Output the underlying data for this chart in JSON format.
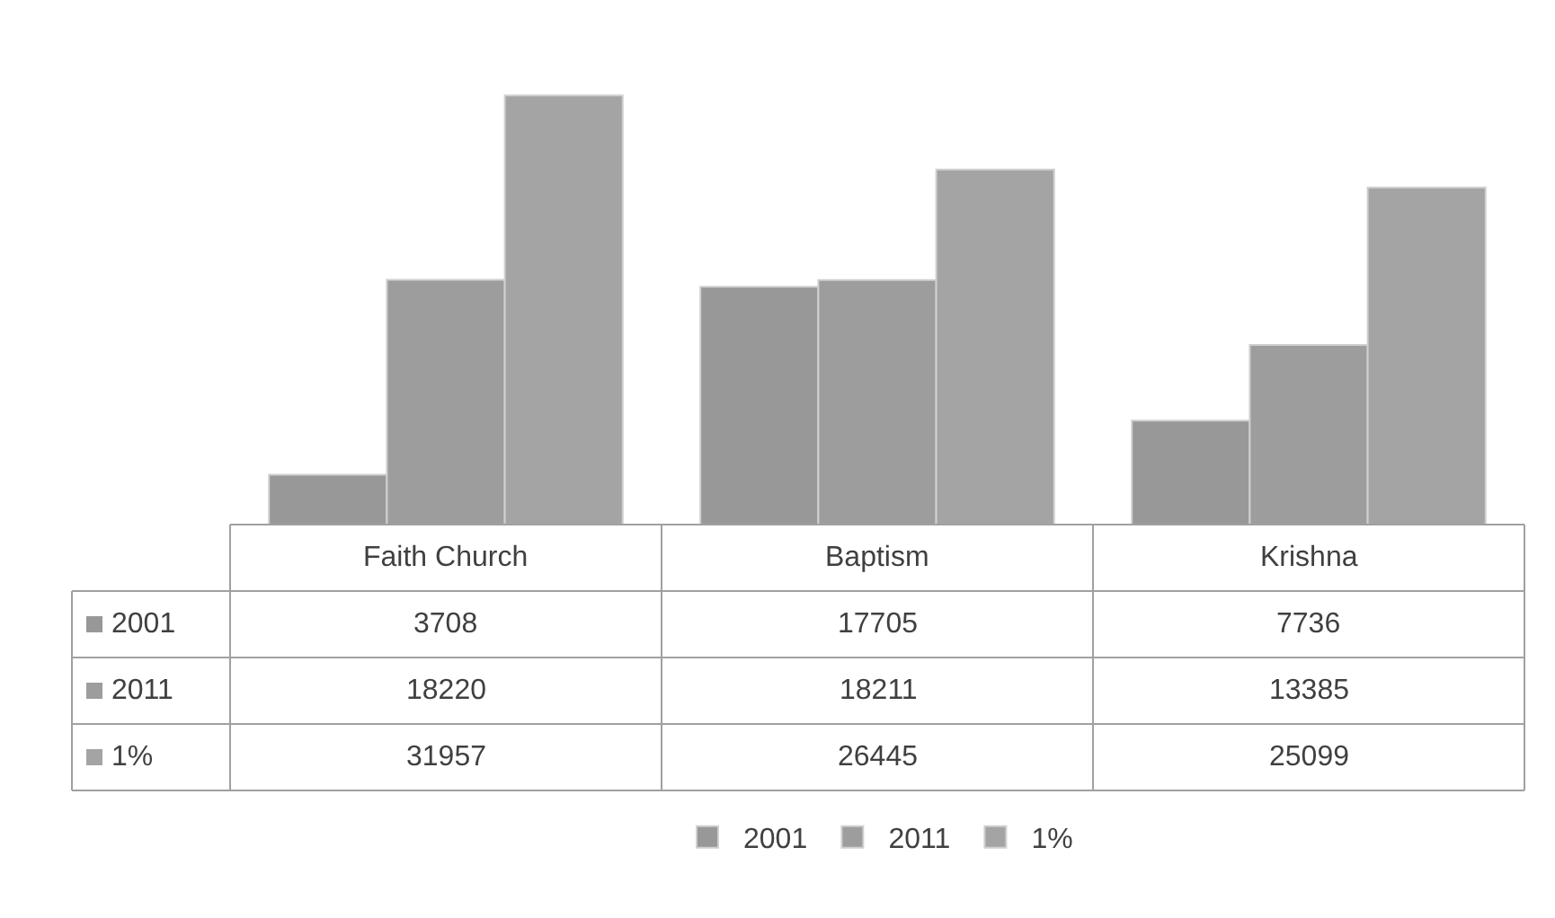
{
  "chart_data": {
    "type": "bar",
    "categories": [
      "Faith Church",
      "Baptism",
      "Krishna"
    ],
    "series": [
      {
        "name": "2001",
        "color": "#989898",
        "values": [
          3708,
          17705,
          7736
        ]
      },
      {
        "name": "2011",
        "color": "#9d9d9d",
        "values": [
          18220,
          18211,
          13385
        ]
      },
      {
        "name": "1%",
        "color": "#a4a4a4",
        "values": [
          31957,
          26445,
          25099
        ]
      }
    ],
    "data_labels": true,
    "legend": "bottom"
  }
}
